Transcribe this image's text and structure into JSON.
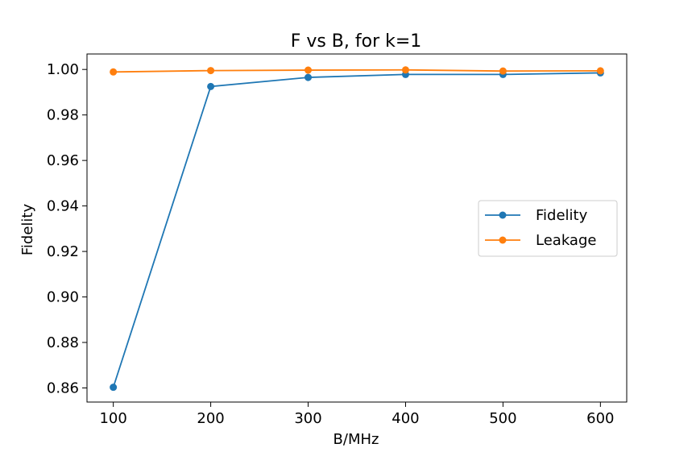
{
  "chart_data": {
    "type": "line",
    "title": "F vs B, for k=1",
    "xlabel": "B/MHz",
    "ylabel": "Fidelity",
    "x": [
      100,
      200,
      300,
      400,
      500,
      600
    ],
    "xlim": [
      73,
      627
    ],
    "ylim": [
      0.8538,
      1.0068
    ],
    "xticks": [
      100,
      200,
      300,
      400,
      500,
      600
    ],
    "xtick_labels": [
      "100",
      "200",
      "300",
      "400",
      "500",
      "600"
    ],
    "yticks": [
      0.86,
      0.88,
      0.9,
      0.92,
      0.94,
      0.96,
      0.98,
      1.0
    ],
    "ytick_labels": [
      "0.86",
      "0.88",
      "0.90",
      "0.92",
      "0.94",
      "0.96",
      "0.98",
      "1.00"
    ],
    "grid": false,
    "legend_position": "center-right",
    "series": [
      {
        "name": "Fidelity",
        "color": "#1f77b4",
        "values": [
          0.8603,
          0.9925,
          0.9965,
          0.9978,
          0.9978,
          0.9985
        ]
      },
      {
        "name": "Leakage",
        "color": "#ff7f0e",
        "values": [
          0.9989,
          0.9995,
          0.9997,
          0.9998,
          0.9993,
          0.9994
        ]
      }
    ]
  }
}
